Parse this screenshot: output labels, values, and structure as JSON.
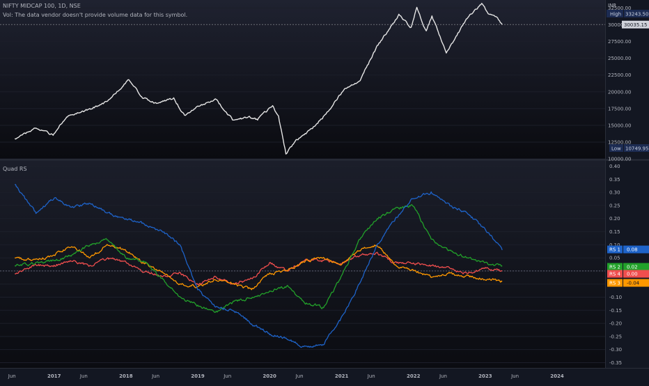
{
  "header": {
    "symbol_title": "NIFTY MIDCAP 100, 1D, NSE",
    "volume_note": "Vol: The data vendor doesn't provide volume data for this symbol."
  },
  "price_pane": {
    "currency": "INR",
    "high_tag": {
      "label": "High",
      "value": "33243.50"
    },
    "low_tag": {
      "label": "Low",
      "value": "10749.95"
    },
    "last_tag": {
      "value": "30035.15"
    },
    "axis_ticks": [
      "32500.00",
      "30000.00",
      "27500.00",
      "25000.00",
      "22500.00",
      "20000.00",
      "17500.00",
      "15000.00",
      "12500.00",
      "10000.00"
    ]
  },
  "indicator_pane": {
    "title": "Quad RS",
    "axis_ticks": [
      "0.40",
      "0.35",
      "0.30",
      "0.25",
      "0.20",
      "0.15",
      "0.10",
      "0.05",
      "0.00",
      "-0.05",
      "-0.10",
      "-0.15",
      "-0.20",
      "-0.25",
      "-0.30",
      "-0.35"
    ],
    "tags": [
      {
        "label": "RS 1",
        "value": "0.08",
        "color": "#1e63c9"
      },
      {
        "label": "RS 2",
        "value": "0.02",
        "color": "#22a12a"
      },
      {
        "label": "RS 4",
        "value": "0.00",
        "color": "#f04e4e"
      },
      {
        "label": "RS 3",
        "value": "-0.04",
        "color": "#ff9800"
      }
    ]
  },
  "time_axis": {
    "labels": [
      "Jun",
      "2017",
      "Jun",
      "2018",
      "Jun",
      "2019",
      "Jun",
      "2020",
      "Jun",
      "2021",
      "Jun",
      "2022",
      "Jun",
      "2023",
      "Jun",
      "2024"
    ]
  },
  "colors": {
    "background": "#131722",
    "price_line": "#e6e6e6",
    "text": "#b2b5be"
  },
  "chart_data": [
    {
      "type": "line",
      "title": "NIFTY MIDCAP 100, 1D, NSE",
      "x": [
        "2016-06-15",
        "2016-10-01",
        "2016-12-27",
        "2017-03-01",
        "2017-07-01",
        "2017-10-01",
        "2018-01-16",
        "2018-03-26",
        "2018-06-01",
        "2018-09-01",
        "2018-10-26",
        "2019-01-01",
        "2019-04-01",
        "2019-07-01",
        "2019-09-20",
        "2019-11-01",
        "2020-01-16",
        "2020-02-15",
        "2020-03-24",
        "2020-05-15",
        "2020-08-01",
        "2020-11-01",
        "2021-01-15",
        "2021-04-01",
        "2021-07-01",
        "2021-10-19",
        "2021-12-20",
        "2022-01-18",
        "2022-03-07",
        "2022-04-05",
        "2022-06-17",
        "2022-08-15",
        "2022-10-01",
        "2022-12-14",
        "2023-01-15",
        "2023-02-28",
        "2023-03-28"
      ],
      "series": [
        {
          "values": [
            13000,
            14600,
            13600,
            16200,
            17400,
            18600,
            21800,
            19200,
            18300,
            19000,
            16500,
            17800,
            18900,
            15700,
            16300,
            15900,
            17900,
            16300,
            10750,
            12800,
            14400,
            17300,
            20500,
            21500,
            26800,
            31500,
            29600,
            32500,
            29000,
            31300,
            25800,
            28700,
            31000,
            33200,
            31700,
            31300,
            30035
          ]
        }
      ],
      "ylim": [
        10000,
        33700
      ]
    },
    {
      "type": "line",
      "title": "Quad RS",
      "x": [
        "2016-06-15",
        "2016-10-01",
        "2017-01-01",
        "2017-04-01",
        "2017-07-01",
        "2017-10-01",
        "2018-01-01",
        "2018-04-01",
        "2018-07-01",
        "2018-10-01",
        "2019-01-01",
        "2019-04-01",
        "2019-07-01",
        "2019-10-01",
        "2020-01-01",
        "2020-04-01",
        "2020-07-01",
        "2020-10-01",
        "2021-01-01",
        "2021-04-01",
        "2021-07-01",
        "2021-10-01",
        "2022-01-01",
        "2022-04-01",
        "2022-07-01",
        "2022-10-01",
        "2023-01-01",
        "2023-03-28"
      ],
      "series": [
        {
          "name": "RS 1",
          "color": "#1e63c9",
          "values": [
            0.33,
            0.22,
            0.28,
            0.24,
            0.26,
            0.22,
            0.2,
            0.18,
            0.15,
            0.1,
            -0.07,
            -0.14,
            -0.15,
            -0.2,
            -0.24,
            -0.26,
            -0.29,
            -0.28,
            -0.18,
            -0.05,
            0.1,
            0.2,
            0.28,
            0.3,
            0.25,
            0.22,
            0.16,
            0.08
          ]
        },
        {
          "name": "RS 2",
          "color": "#22a12a",
          "values": [
            0.02,
            0.03,
            0.04,
            0.06,
            0.1,
            0.12,
            0.05,
            0.04,
            -0.03,
            -0.1,
            -0.13,
            -0.16,
            -0.12,
            -0.1,
            -0.08,
            -0.06,
            -0.12,
            -0.14,
            -0.02,
            0.12,
            0.2,
            0.24,
            0.25,
            0.12,
            0.08,
            0.05,
            0.03,
            0.02
          ]
        },
        {
          "name": "RS 3",
          "color": "#ff9800",
          "values": [
            0.05,
            0.04,
            0.06,
            0.1,
            0.05,
            0.1,
            0.08,
            0.03,
            0.0,
            -0.05,
            -0.06,
            -0.03,
            -0.05,
            -0.07,
            -0.01,
            0.0,
            0.04,
            0.05,
            0.02,
            0.08,
            0.1,
            0.02,
            0.0,
            -0.02,
            -0.01,
            -0.02,
            -0.03,
            -0.04
          ]
        },
        {
          "name": "RS 4",
          "color": "#f04e4e",
          "values": [
            -0.01,
            0.02,
            0.02,
            0.04,
            0.02,
            0.05,
            0.03,
            0.0,
            -0.02,
            -0.01,
            -0.05,
            -0.02,
            -0.05,
            -0.03,
            0.03,
            0.0,
            0.04,
            0.04,
            0.03,
            0.06,
            0.07,
            0.03,
            0.03,
            0.02,
            0.01,
            -0.01,
            0.01,
            0.0
          ]
        }
      ],
      "ylim": [
        -0.37,
        0.42
      ]
    }
  ]
}
